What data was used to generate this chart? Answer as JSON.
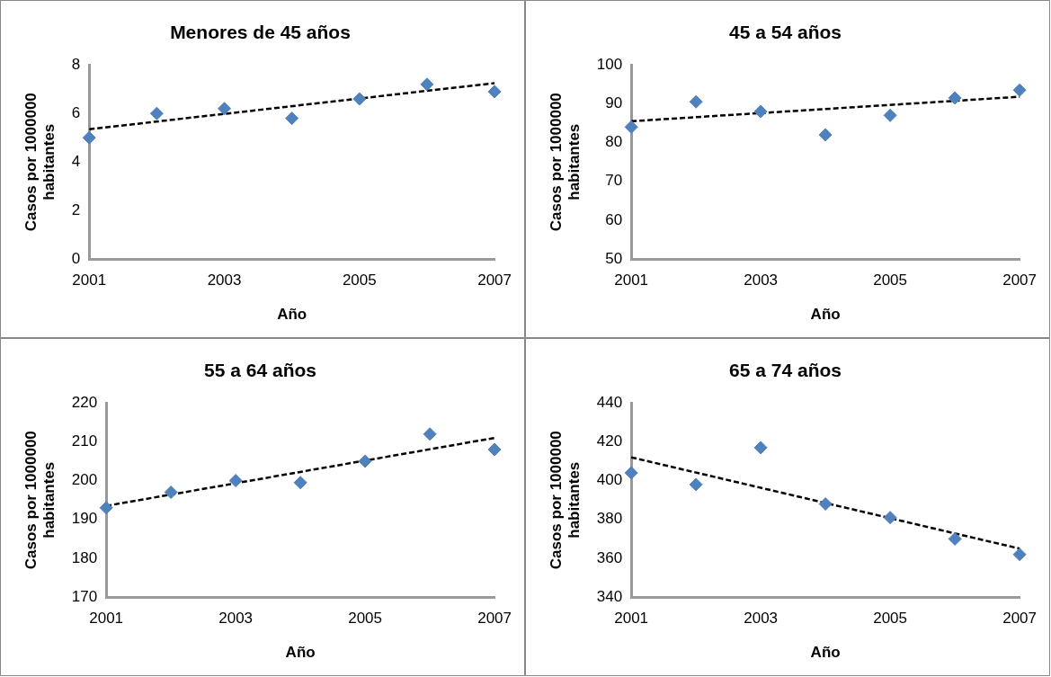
{
  "chart_data": [
    {
      "type": "scatter",
      "title": "Menores de 45 años",
      "xlabel": "Año",
      "ylabel": "Casos por 1000000 habitantes",
      "xlim": [
        2001,
        2007
      ],
      "xticks": [
        2001,
        2003,
        2005,
        2007
      ],
      "ylim": [
        0,
        8
      ],
      "yticks": [
        0,
        2,
        4,
        6,
        8
      ],
      "grid": false,
      "legend": false,
      "marker": "diamond",
      "series": [
        {
          "type": "scatter",
          "color": "#4f81bd",
          "x": [
            2001,
            2002,
            2003,
            2004,
            2005,
            2006,
            2007
          ],
          "values": [
            5.0,
            6.0,
            6.2,
            5.8,
            6.6,
            7.2,
            6.9
          ]
        },
        {
          "type": "line",
          "color": "#000000",
          "x": [
            2001,
            2007
          ],
          "values": [
            5.35,
            7.25
          ],
          "line_style": "dashed",
          "marker": "none"
        }
      ]
    },
    {
      "type": "scatter",
      "title": "45 a 54 años",
      "xlabel": "Año",
      "ylabel": "Casos por 1000000 habitantes",
      "xlim": [
        2001,
        2007
      ],
      "xticks": [
        2001,
        2003,
        2005,
        2007
      ],
      "ylim": [
        50,
        100
      ],
      "yticks": [
        50,
        60,
        70,
        80,
        90,
        100
      ],
      "grid": false,
      "legend": false,
      "marker": "diamond",
      "series": [
        {
          "type": "scatter",
          "color": "#4f81bd",
          "x": [
            2001,
            2002,
            2003,
            2004,
            2005,
            2006,
            2007
          ],
          "values": [
            84,
            90.5,
            88,
            82,
            87,
            91.5,
            93.5
          ]
        },
        {
          "type": "line",
          "color": "#000000",
          "x": [
            2001,
            2007
          ],
          "values": [
            85.5,
            91.8
          ],
          "line_style": "dashed",
          "marker": "none"
        }
      ]
    },
    {
      "type": "scatter",
      "title": "55 a 64 años",
      "xlabel": "Año",
      "ylabel": "Casos por 1000000 habitantes",
      "xlim": [
        2001,
        2007
      ],
      "xticks": [
        2001,
        2003,
        2005,
        2007
      ],
      "ylim": [
        170,
        220
      ],
      "yticks": [
        170,
        180,
        190,
        200,
        210,
        220
      ],
      "grid": false,
      "legend": false,
      "marker": "diamond",
      "series": [
        {
          "type": "scatter",
          "color": "#4f81bd",
          "x": [
            2001,
            2002,
            2003,
            2004,
            2005,
            2006,
            2007
          ],
          "values": [
            193,
            197,
            200,
            199.5,
            205,
            212,
            208
          ]
        },
        {
          "type": "line",
          "color": "#000000",
          "x": [
            2001,
            2007
          ],
          "values": [
            193.5,
            211
          ],
          "line_style": "dashed",
          "marker": "none"
        }
      ]
    },
    {
      "type": "scatter",
      "title": "65 a 74 años",
      "xlabel": "Año",
      "ylabel": "Casos por 1000000 habitantes",
      "xlim": [
        2001,
        2007
      ],
      "xticks": [
        2001,
        2003,
        2005,
        2007
      ],
      "ylim": [
        340,
        440
      ],
      "yticks": [
        340,
        360,
        380,
        400,
        420,
        440
      ],
      "grid": false,
      "legend": false,
      "marker": "diamond",
      "series": [
        {
          "type": "scatter",
          "color": "#4f81bd",
          "x": [
            2001,
            2002,
            2003,
            2004,
            2005,
            2006,
            2007
          ],
          "values": [
            404,
            398,
            417,
            388,
            381,
            370,
            362
          ]
        },
        {
          "type": "line",
          "color": "#000000",
          "x": [
            2001,
            2007
          ],
          "values": [
            412,
            365
          ],
          "line_style": "dashed",
          "marker": "none"
        }
      ]
    }
  ]
}
